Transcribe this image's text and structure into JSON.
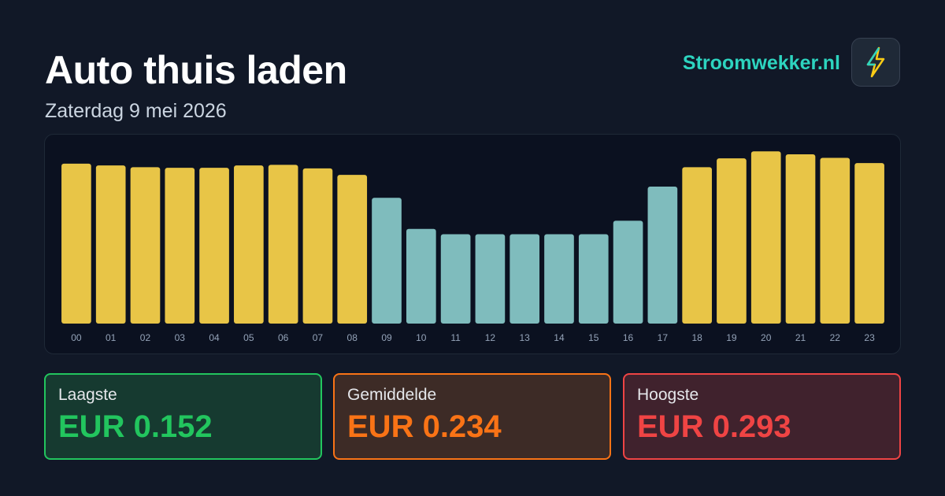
{
  "chart_data": {
    "type": "bar",
    "title": "Auto thuis laden",
    "subtitle": "Zaterdag 9 mei 2026",
    "categories": [
      "00",
      "01",
      "02",
      "03",
      "04",
      "05",
      "06",
      "07",
      "08",
      "09",
      "10",
      "11",
      "12",
      "13",
      "14",
      "15",
      "16",
      "17",
      "18",
      "19",
      "20",
      "21",
      "22",
      "23"
    ],
    "values": [
      0.272,
      0.269,
      0.266,
      0.265,
      0.265,
      0.269,
      0.27,
      0.264,
      0.253,
      0.214,
      0.161,
      0.152,
      0.152,
      0.152,
      0.152,
      0.152,
      0.175,
      0.233,
      0.266,
      0.281,
      0.293,
      0.288,
      0.282,
      0.273
    ],
    "colors": [
      "#e8c547",
      "#e8c547",
      "#e8c547",
      "#e8c547",
      "#e8c547",
      "#e8c547",
      "#e8c547",
      "#e8c547",
      "#e8c547",
      "#7fbcbd",
      "#7fbcbd",
      "#7fbcbd",
      "#7fbcbd",
      "#7fbcbd",
      "#7fbcbd",
      "#7fbcbd",
      "#7fbcbd",
      "#7fbcbd",
      "#e8c547",
      "#e8c547",
      "#e8c547",
      "#e8c547",
      "#e8c547",
      "#e8c547"
    ],
    "ylim": [
      0,
      0.3
    ]
  },
  "brand": "Stroomwekker.nl",
  "stats": [
    {
      "label": "Laagste",
      "value": "EUR 0.152"
    },
    {
      "label": "Gemiddelde",
      "value": "EUR 0.234"
    },
    {
      "label": "Hoogste",
      "value": "EUR 0.293"
    }
  ]
}
